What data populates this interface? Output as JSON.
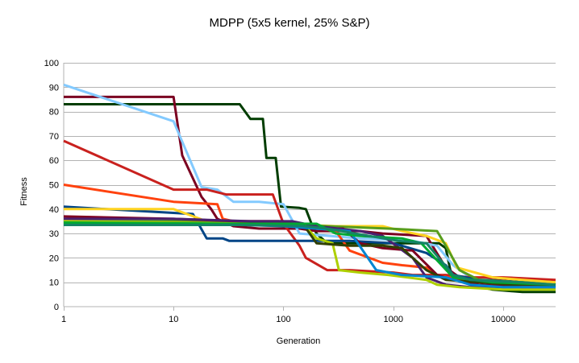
{
  "chart_data": {
    "type": "line",
    "title": "MDPP (5x5 kernel, 25% S&P)",
    "xlabel": "Generation",
    "ylabel": "Fitness",
    "x_scale": "log",
    "xlim": [
      1,
      30000
    ],
    "ylim": [
      0,
      100
    ],
    "x_ticks": [
      "1",
      "10",
      "100",
      "1000",
      "10000"
    ],
    "y_ticks": [
      "0",
      "10",
      "20",
      "30",
      "40",
      "50",
      "60",
      "70",
      "80",
      "90",
      "100"
    ],
    "grid": "horizontal",
    "legend": "none",
    "series": [
      {
        "color": "#003d00",
        "points": [
          [
            1,
            83
          ],
          [
            40,
            83
          ],
          [
            50,
            77
          ],
          [
            65,
            77
          ],
          [
            70,
            61
          ],
          [
            85,
            61
          ],
          [
            95,
            41
          ],
          [
            140,
            40.5
          ],
          [
            160,
            40
          ],
          [
            180,
            34
          ],
          [
            200,
            30
          ],
          [
            250,
            26
          ],
          [
            400,
            26
          ],
          [
            800,
            26
          ],
          [
            1500,
            26
          ],
          [
            2600,
            26
          ],
          [
            3000,
            24
          ],
          [
            3300,
            15
          ],
          [
            3600,
            12
          ],
          [
            5000,
            9
          ],
          [
            8000,
            7
          ],
          [
            15000,
            6
          ],
          [
            30000,
            6
          ]
        ]
      },
      {
        "color": "#7b0021",
        "points": [
          [
            1,
            86
          ],
          [
            10,
            86
          ],
          [
            12,
            62
          ],
          [
            18,
            45
          ],
          [
            22,
            40
          ],
          [
            25,
            36
          ],
          [
            35,
            33
          ],
          [
            60,
            32
          ],
          [
            100,
            32
          ],
          [
            140,
            32
          ],
          [
            200,
            31
          ],
          [
            500,
            31
          ],
          [
            800,
            30
          ],
          [
            2000,
            29
          ],
          [
            3000,
            16
          ],
          [
            4000,
            12
          ],
          [
            8000,
            11
          ],
          [
            15000,
            10
          ],
          [
            30000,
            9
          ]
        ]
      },
      {
        "color": "#83caff",
        "points": [
          [
            1,
            91
          ],
          [
            10,
            76
          ],
          [
            18,
            49
          ],
          [
            25,
            48
          ],
          [
            35,
            43
          ],
          [
            60,
            43
          ],
          [
            100,
            42
          ],
          [
            140,
            30
          ],
          [
            500,
            28
          ],
          [
            1500,
            27
          ],
          [
            2500,
            25
          ],
          [
            3500,
            17
          ],
          [
            5000,
            12
          ],
          [
            10000,
            10
          ],
          [
            30000,
            10
          ]
        ]
      },
      {
        "color": "#c9211e",
        "points": [
          [
            1,
            68
          ],
          [
            10,
            48
          ],
          [
            20,
            48
          ],
          [
            30,
            46
          ],
          [
            80,
            46
          ],
          [
            100,
            34
          ],
          [
            140,
            25
          ],
          [
            160,
            20
          ],
          [
            250,
            15
          ],
          [
            400,
            15
          ],
          [
            1000,
            14
          ],
          [
            1500,
            13
          ],
          [
            3000,
            13
          ],
          [
            5000,
            12
          ],
          [
            10000,
            12
          ],
          [
            30000,
            11
          ]
        ]
      },
      {
        "color": "#ff420e",
        "points": [
          [
            1,
            50
          ],
          [
            10,
            43
          ],
          [
            25,
            42
          ],
          [
            28,
            36
          ],
          [
            35,
            35
          ],
          [
            90,
            35
          ],
          [
            120,
            34
          ],
          [
            300,
            31
          ],
          [
            400,
            23
          ],
          [
            800,
            18
          ],
          [
            1200,
            17
          ],
          [
            2000,
            16
          ],
          [
            2500,
            13
          ],
          [
            4000,
            11
          ],
          [
            10000,
            10
          ],
          [
            30000,
            9
          ]
        ]
      },
      {
        "color": "#004586",
        "points": [
          [
            1,
            41
          ],
          [
            15,
            38
          ],
          [
            20,
            28
          ],
          [
            28,
            28
          ],
          [
            32,
            27
          ],
          [
            120,
            27
          ],
          [
            400,
            27
          ],
          [
            1000,
            26
          ],
          [
            2000,
            22
          ],
          [
            3000,
            17
          ],
          [
            3500,
            13
          ],
          [
            6000,
            11
          ],
          [
            15000,
            10
          ],
          [
            30000,
            8
          ]
        ]
      },
      {
        "color": "#ffd320",
        "points": [
          [
            1,
            40
          ],
          [
            10,
            40
          ],
          [
            20,
            35
          ],
          [
            80,
            34
          ],
          [
            300,
            33
          ],
          [
            800,
            33
          ],
          [
            1200,
            31
          ],
          [
            2000,
            29
          ],
          [
            3000,
            26
          ],
          [
            3800,
            16
          ],
          [
            8000,
            12
          ],
          [
            15000,
            11
          ],
          [
            30000,
            10
          ]
        ]
      },
      {
        "color": "#579d1c",
        "points": [
          [
            1,
            35
          ],
          [
            10,
            35
          ],
          [
            80,
            34
          ],
          [
            250,
            33
          ],
          [
            900,
            32
          ],
          [
            2500,
            31
          ],
          [
            3000,
            25
          ],
          [
            4000,
            15
          ],
          [
            6000,
            11
          ],
          [
            15000,
            10
          ],
          [
            30000,
            9
          ]
        ]
      },
      {
        "color": "#7e0021",
        "points": [
          [
            1,
            37
          ],
          [
            10,
            36
          ],
          [
            40,
            35
          ],
          [
            100,
            35
          ],
          [
            150,
            34
          ],
          [
            200,
            32
          ],
          [
            350,
            32
          ],
          [
            500,
            26
          ],
          [
            800,
            24
          ],
          [
            1500,
            23
          ],
          [
            2500,
            13
          ],
          [
            3500,
            11
          ],
          [
            6000,
            9
          ],
          [
            15000,
            8
          ],
          [
            30000,
            8
          ]
        ]
      },
      {
        "color": "#4b1f6f",
        "points": [
          [
            1,
            36
          ],
          [
            10,
            36
          ],
          [
            50,
            35
          ],
          [
            120,
            35
          ],
          [
            200,
            33
          ],
          [
            500,
            31
          ],
          [
            800,
            29
          ],
          [
            1500,
            20
          ],
          [
            2000,
            12
          ],
          [
            3000,
            9
          ],
          [
            5000,
            8
          ],
          [
            10000,
            8
          ],
          [
            30000,
            8
          ]
        ]
      },
      {
        "color": "#aecf00",
        "points": [
          [
            1,
            35
          ],
          [
            50,
            34
          ],
          [
            150,
            34
          ],
          [
            200,
            28
          ],
          [
            280,
            26
          ],
          [
            320,
            15
          ],
          [
            500,
            14
          ],
          [
            900,
            13
          ],
          [
            2000,
            11
          ],
          [
            2500,
            9
          ],
          [
            4000,
            8
          ],
          [
            10000,
            7
          ],
          [
            30000,
            7
          ]
        ]
      },
      {
        "color": "#314004",
        "points": [
          [
            1,
            34
          ],
          [
            50,
            34
          ],
          [
            150,
            34
          ],
          [
            200,
            26
          ],
          [
            400,
            25
          ],
          [
            800,
            25
          ],
          [
            1200,
            24
          ],
          [
            2000,
            15
          ],
          [
            3000,
            11
          ],
          [
            6000,
            10
          ],
          [
            12000,
            9
          ],
          [
            30000,
            9
          ]
        ]
      },
      {
        "color": "#0084d1",
        "points": [
          [
            1,
            34
          ],
          [
            20,
            34
          ],
          [
            100,
            33
          ],
          [
            200,
            32
          ],
          [
            400,
            31
          ],
          [
            700,
            15
          ],
          [
            1200,
            13
          ],
          [
            3000,
            12
          ],
          [
            5000,
            9
          ],
          [
            10000,
            8
          ],
          [
            30000,
            8
          ]
        ]
      },
      {
        "color": "#00a933",
        "points": [
          [
            1,
            34.5
          ],
          [
            30,
            34
          ],
          [
            200,
            34
          ],
          [
            300,
            30
          ],
          [
            500,
            29
          ],
          [
            1200,
            28
          ],
          [
            1800,
            26
          ],
          [
            2500,
            19
          ],
          [
            3500,
            12
          ],
          [
            8000,
            10
          ],
          [
            30000,
            9
          ]
        ]
      },
      {
        "color": "#158466",
        "points": [
          [
            1,
            33.5
          ],
          [
            40,
            33.5
          ],
          [
            150,
            33
          ],
          [
            250,
            32
          ],
          [
            600,
            29
          ],
          [
            1100,
            27
          ],
          [
            2000,
            26
          ],
          [
            3500,
            13
          ],
          [
            5000,
            11
          ],
          [
            15000,
            10
          ],
          [
            30000,
            9
          ]
        ]
      }
    ]
  }
}
